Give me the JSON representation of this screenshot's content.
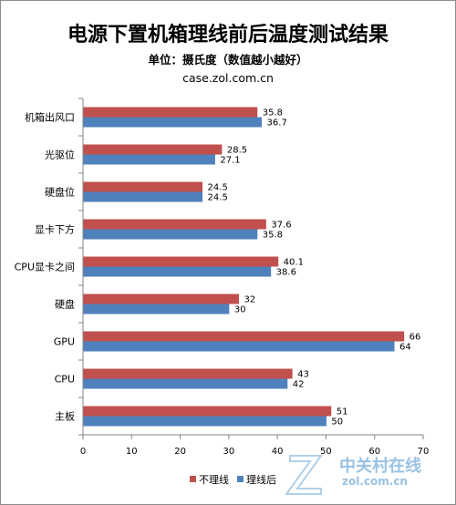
{
  "chart_data": {
    "type": "bar",
    "orientation": "horizontal",
    "title": "电源下置机箱理线前后温度测试结果",
    "subtitle": "单位：摄氏度（数值越小越好）",
    "source": "case.zol.com.cn",
    "categories": [
      "机箱出风口",
      "光驱位",
      "硬盘位",
      "显卡下方",
      "CPU显卡之间",
      "硬盘",
      "GPU",
      "CPU",
      "主板"
    ],
    "series": [
      {
        "name": "不理线",
        "color": "#c0504d",
        "values": [
          35.8,
          28.5,
          24.5,
          37.6,
          40.1,
          32,
          66,
          43,
          51
        ]
      },
      {
        "name": "理线后",
        "color": "#4f81bd",
        "values": [
          36.7,
          27.1,
          24.5,
          35.8,
          38.6,
          30,
          64,
          42,
          50
        ]
      }
    ],
    "xlim": [
      0,
      70
    ],
    "xticks": [
      "0",
      "10",
      "20",
      "30",
      "40",
      "50",
      "60",
      "70"
    ],
    "grid": false,
    "legend": "bottom-right"
  },
  "watermark": {
    "text": "中关村在线",
    "sub": "zol.com.cn"
  }
}
